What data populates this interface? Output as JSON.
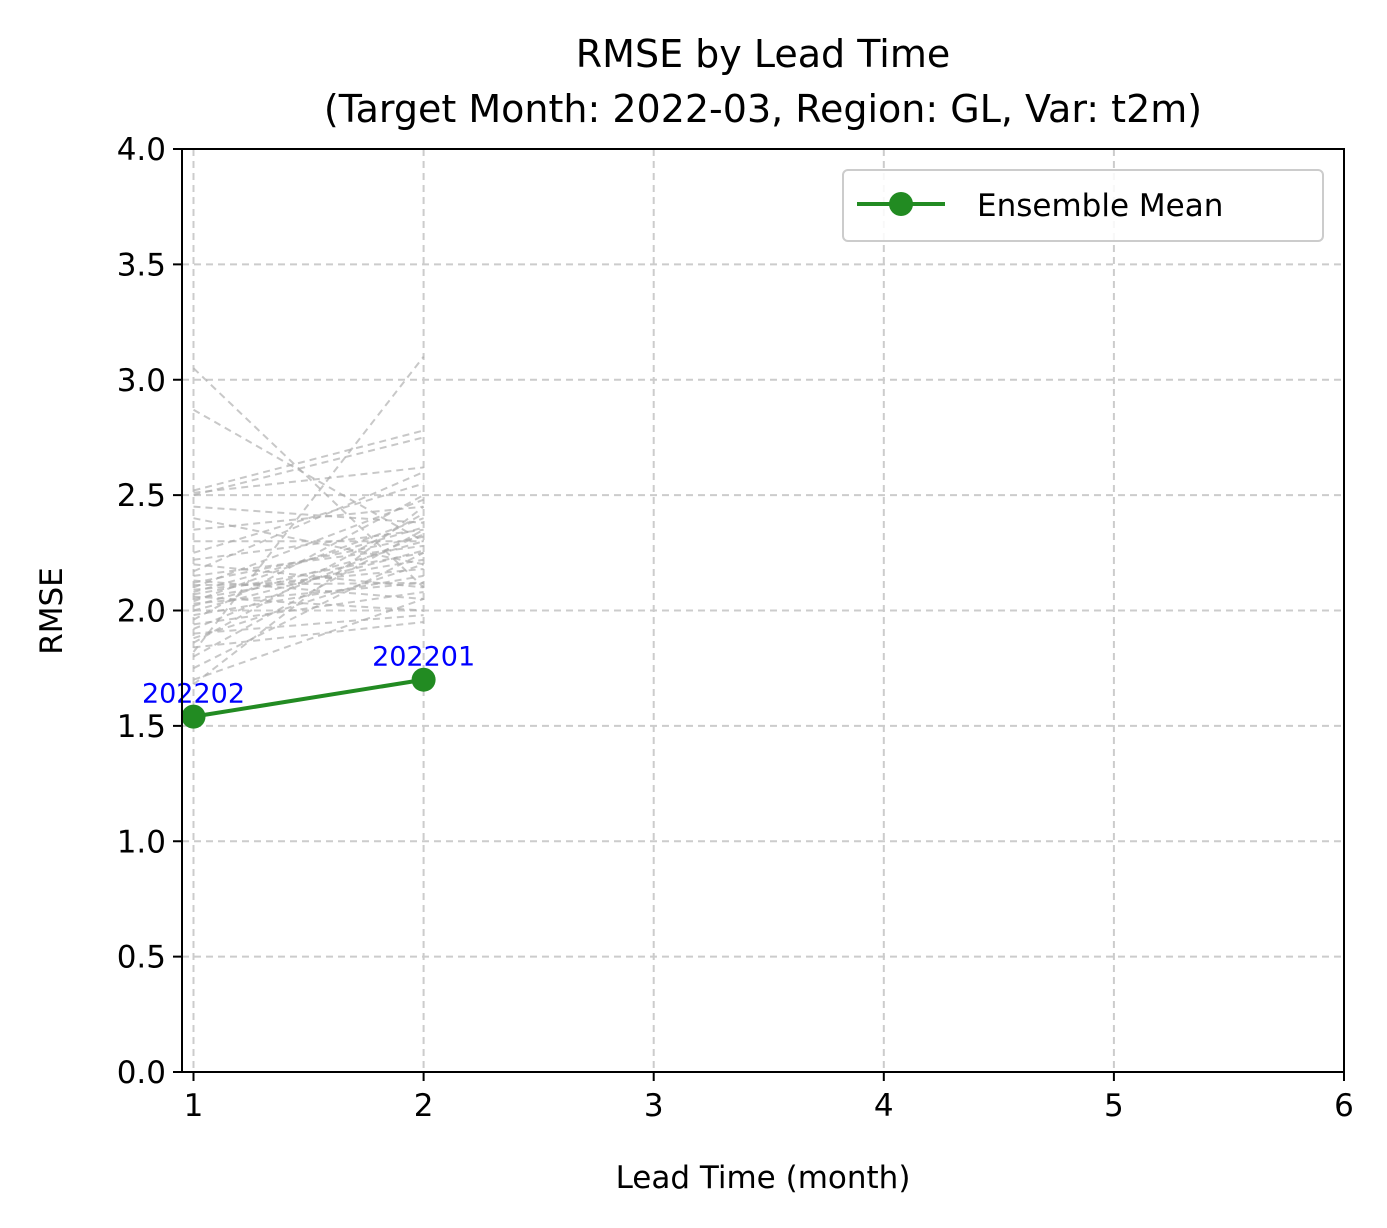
{
  "chart_data": {
    "type": "line",
    "title": "RMSE by Lead Time",
    "subtitle": "(Target Month: 2022-03, Region: GL, Var: t2m)",
    "xlabel": "Lead Time (month)",
    "ylabel": "RMSE",
    "xlim": [
      0.95,
      6
    ],
    "ylim": [
      0,
      4
    ],
    "xticks": [
      "1",
      "2",
      "3",
      "4",
      "5",
      "6"
    ],
    "yticks": [
      "0.0",
      "0.5",
      "1.0",
      "1.5",
      "2.0",
      "2.5",
      "3.0",
      "3.5",
      "4.0"
    ],
    "grid": true,
    "legend_position": "top-right",
    "series": [
      {
        "name": "Ensemble Mean",
        "color": "#228b22",
        "x": [
          1,
          2
        ],
        "y": [
          1.54,
          1.7
        ],
        "point_labels": [
          "202202",
          "202201"
        ],
        "point_label_color": "#0000ff"
      }
    ],
    "members": {
      "color": "#aaaaaa",
      "style": "dashed",
      "x": [
        1,
        2
      ],
      "pairs": [
        [
          3.05,
          2.1
        ],
        [
          2.87,
          2.3
        ],
        [
          2.52,
          2.78
        ],
        [
          2.51,
          2.62
        ],
        [
          2.5,
          2.75
        ],
        [
          2.45,
          2.38
        ],
        [
          2.4,
          2.2
        ],
        [
          2.35,
          2.45
        ],
        [
          2.3,
          2.3
        ],
        [
          2.25,
          2.55
        ],
        [
          2.22,
          2.35
        ],
        [
          2.2,
          2.1
        ],
        [
          2.17,
          2.6
        ],
        [
          2.15,
          2.28
        ],
        [
          2.13,
          2.05
        ],
        [
          2.12,
          2.32
        ],
        [
          2.1,
          2.48
        ],
        [
          2.09,
          2.18
        ],
        [
          2.08,
          2.36
        ],
        [
          2.07,
          2.25
        ],
        [
          2.06,
          2.0
        ],
        [
          2.05,
          2.22
        ],
        [
          2.04,
          2.4
        ],
        [
          2.03,
          2.12
        ],
        [
          2.02,
          2.3
        ],
        [
          2.0,
          2.26
        ],
        [
          1.98,
          2.15
        ],
        [
          1.96,
          2.5
        ],
        [
          1.94,
          2.08
        ],
        [
          1.92,
          2.33
        ],
        [
          1.9,
          1.98
        ],
        [
          1.88,
          2.2
        ],
        [
          1.86,
          2.42
        ],
        [
          1.84,
          1.95
        ],
        [
          1.82,
          3.1
        ],
        [
          1.8,
          2.35
        ],
        [
          1.75,
          2.25
        ],
        [
          1.7,
          2.05
        ],
        [
          1.68,
          2.45
        ],
        [
          2.11,
          2.12
        ]
      ]
    }
  }
}
